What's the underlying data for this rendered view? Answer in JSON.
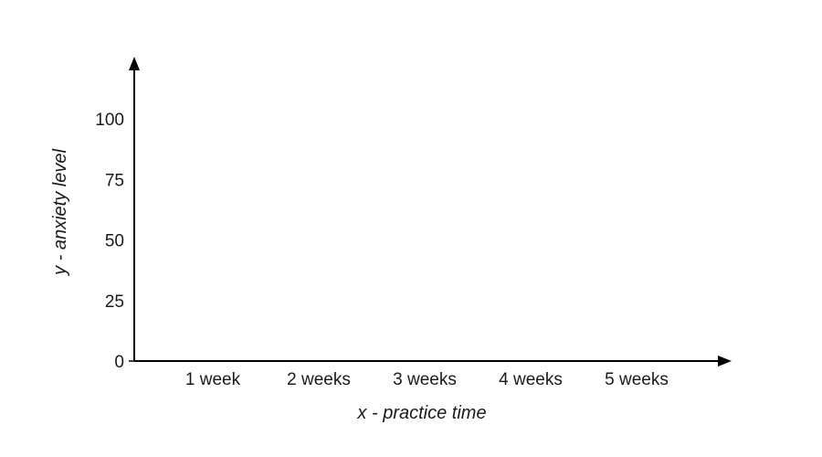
{
  "chart_data": {
    "type": "line",
    "title": "",
    "xlabel": "x - practice time",
    "ylabel": "y - anxiety level",
    "categories": [
      "1 week",
      "2 weeks",
      "3 weeks",
      "4 weeks",
      "5 weeks"
    ],
    "yticks": [
      0,
      25,
      50,
      75,
      100
    ],
    "ylim": [
      0,
      120
    ],
    "series": [],
    "grid": false,
    "legend": "none"
  }
}
